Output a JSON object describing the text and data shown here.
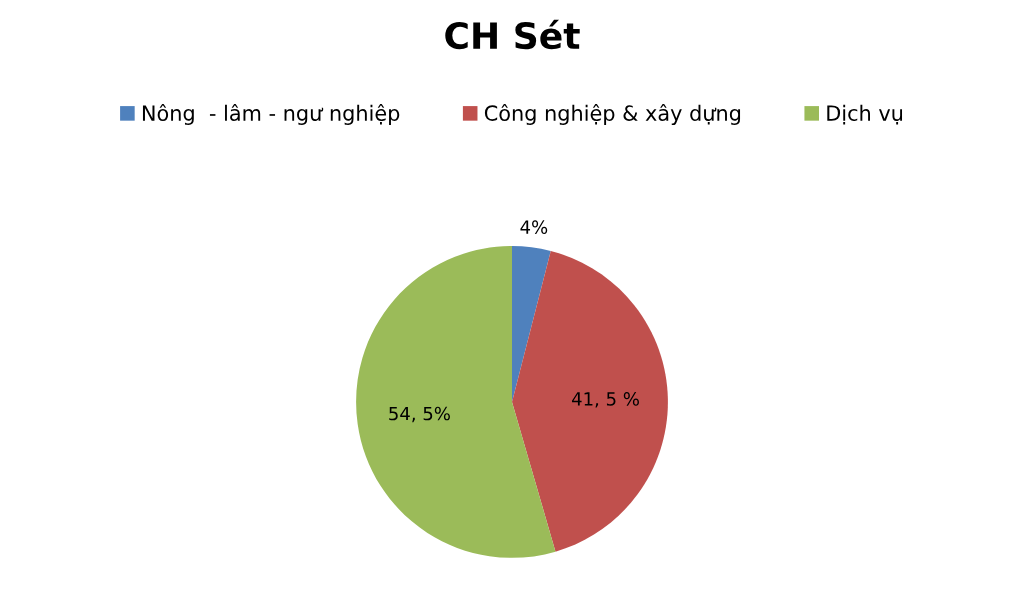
{
  "chart_data": {
    "type": "pie",
    "title": "CH Sét",
    "categories": [
      "Nông  - lâm - ngư nghiệp",
      "Công nghiệp & xây dựng",
      "Dịch vụ"
    ],
    "values": [
      4,
      41.5,
      54.5
    ],
    "colors": [
      "#4f81bd",
      "#c0504d",
      "#9bbb59"
    ],
    "value_labels": [
      "4%",
      "41, 5 %",
      "54, 5%"
    ],
    "legend": "top"
  }
}
